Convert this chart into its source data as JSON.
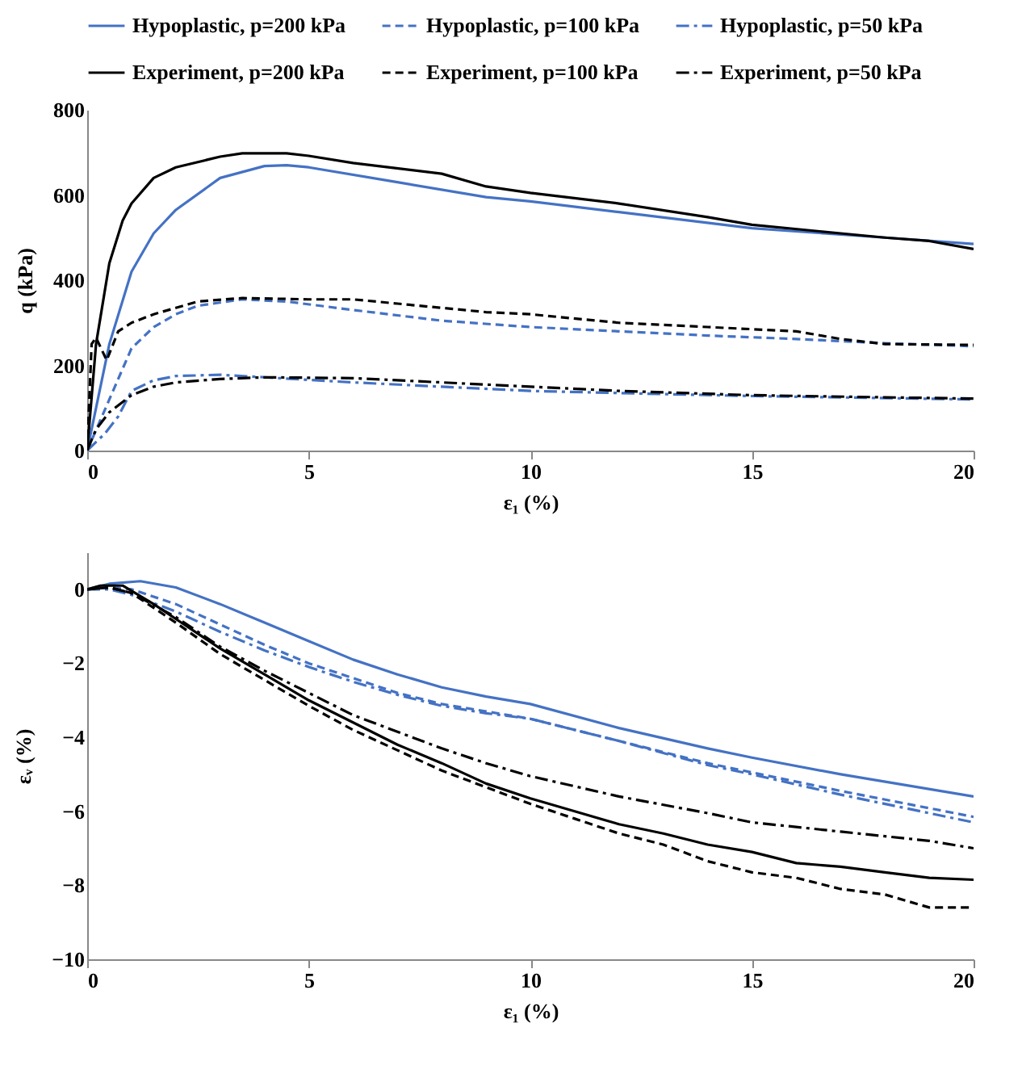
{
  "chart_data": [
    {
      "type": "line",
      "xlabel": "ε₁ (%)",
      "ylabel": "q (kPa)",
      "xlim": [
        0,
        20
      ],
      "xticks": [
        0,
        5,
        10,
        15,
        20
      ],
      "ylim": [
        0,
        800
      ],
      "yticks": [
        0,
        200,
        400,
        600,
        800
      ],
      "grid": false,
      "legend": "top",
      "series": [
        {
          "name": "Hypoplastic, p=200 kPa",
          "color": "#4472c4",
          "line_style": "solid",
          "x": [
            0,
            0.5,
            1,
            1.5,
            2,
            3,
            4,
            4.5,
            5,
            7,
            9,
            10,
            12,
            15,
            18,
            20
          ],
          "values": [
            0,
            250,
            420,
            510,
            565,
            640,
            668,
            670,
            665,
            630,
            595,
            585,
            560,
            522,
            500,
            485
          ]
        },
        {
          "name": "Hypoplastic, p=100 kPa",
          "color": "#4472c4",
          "line_style": "dashed",
          "x": [
            0,
            0.5,
            1,
            1.5,
            2,
            2.5,
            3.5,
            4.5,
            6,
            8,
            10,
            12,
            14,
            16,
            18,
            20
          ],
          "values": [
            0,
            120,
            240,
            290,
            320,
            340,
            355,
            350,
            330,
            305,
            290,
            280,
            270,
            262,
            252,
            245
          ]
        },
        {
          "name": "Hypoplastic, p=50 kPa",
          "color": "#4472c4",
          "line_style": "dashdot",
          "x": [
            0,
            0.4,
            0.7,
            1,
            1.5,
            2,
            3,
            4,
            6,
            8,
            10,
            12,
            15,
            20
          ],
          "values": [
            0,
            40,
            80,
            140,
            165,
            175,
            178,
            172,
            160,
            150,
            140,
            135,
            128,
            120
          ]
        },
        {
          "name": "Experiment, p=200 kPa",
          "color": "#000000",
          "line_style": "solid",
          "x": [
            0,
            0.2,
            0.5,
            0.8,
            1,
            1.5,
            2,
            3,
            3.5,
            4.5,
            5,
            6,
            8,
            9,
            10,
            12,
            14,
            15,
            17,
            18,
            19,
            20
          ],
          "values": [
            0,
            250,
            440,
            540,
            580,
            640,
            665,
            690,
            698,
            698,
            692,
            675,
            650,
            620,
            605,
            580,
            548,
            530,
            510,
            500,
            492,
            473
          ]
        },
        {
          "name": "Experiment, p=100 kPa",
          "color": "#000000",
          "line_style": "dashed",
          "x": [
            0,
            0.1,
            0.2,
            0.44,
            0.7,
            1,
            1.5,
            2,
            2.5,
            3.5,
            5,
            6,
            7,
            8,
            9,
            10,
            12,
            14,
            16,
            17,
            18,
            20
          ],
          "values": [
            0,
            250,
            265,
            212,
            280,
            300,
            320,
            335,
            350,
            358,
            355,
            355,
            345,
            335,
            325,
            320,
            300,
            290,
            280,
            262,
            250,
            248
          ]
        },
        {
          "name": "Experiment, p=50 kPa",
          "color": "#000000",
          "line_style": "dashdot",
          "x": [
            0,
            0.2,
            0.5,
            1,
            1.5,
            2,
            3,
            4,
            6,
            8,
            10,
            12,
            15,
            18,
            20
          ],
          "values": [
            0,
            50,
            90,
            130,
            150,
            160,
            168,
            172,
            170,
            160,
            150,
            140,
            130,
            125,
            122
          ]
        }
      ]
    },
    {
      "type": "line",
      "xlabel": "ε₁ (%)",
      "ylabel": "εᵥ (%)",
      "xlim": [
        0,
        20
      ],
      "xticks": [
        0,
        5,
        10,
        15,
        20
      ],
      "ylim": [
        -10,
        1
      ],
      "yticks": [
        -10,
        -8,
        -6,
        -4,
        -2,
        0
      ],
      "grid": false,
      "series": [
        {
          "color": "#4472c4",
          "line_style": "solid",
          "x": [
            0,
            0.5,
            1.2,
            2,
            3,
            4,
            5,
            6,
            7,
            8,
            9,
            10,
            12,
            14,
            15,
            17,
            20
          ],
          "values": [
            0,
            0.15,
            0.22,
            0.05,
            -0.4,
            -0.9,
            -1.4,
            -1.9,
            -2.3,
            -2.65,
            -2.9,
            -3.1,
            -3.75,
            -4.3,
            -4.55,
            -5.0,
            -5.6
          ]
        },
        {
          "color": "#4472c4",
          "line_style": "dashed",
          "x": [
            0,
            0.5,
            1,
            2,
            3,
            4,
            5,
            6,
            7,
            8,
            9,
            10,
            12,
            14,
            15,
            17,
            20
          ],
          "values": [
            0,
            0.05,
            0,
            -0.4,
            -0.95,
            -1.5,
            -2.0,
            -2.4,
            -2.8,
            -3.1,
            -3.3,
            -3.5,
            -4.1,
            -4.7,
            -4.95,
            -5.45,
            -6.15
          ]
        },
        {
          "color": "#4472c4",
          "line_style": "dashdot",
          "x": [
            0,
            0.5,
            1,
            2,
            3,
            4,
            5,
            6,
            7,
            8,
            9,
            10,
            12,
            14,
            15,
            17,
            20
          ],
          "values": [
            0,
            0,
            -0.15,
            -0.6,
            -1.15,
            -1.65,
            -2.1,
            -2.5,
            -2.85,
            -3.15,
            -3.35,
            -3.5,
            -4.1,
            -4.75,
            -5.0,
            -5.55,
            -6.3
          ]
        },
        {
          "color": "#000000",
          "line_style": "solid",
          "x": [
            0,
            0.3,
            0.8,
            1.5,
            2,
            3,
            4,
            5,
            6,
            7,
            8,
            9,
            10,
            11,
            12,
            13,
            14,
            15,
            16,
            17,
            18,
            19,
            20
          ],
          "values": [
            0,
            0.1,
            0.1,
            -0.4,
            -0.8,
            -1.6,
            -2.3,
            -3.0,
            -3.6,
            -4.2,
            -4.7,
            -5.25,
            -5.65,
            -6.0,
            -6.35,
            -6.6,
            -6.9,
            -7.1,
            -7.4,
            -7.5,
            -7.65,
            -7.8,
            -7.85
          ]
        },
        {
          "color": "#000000",
          "line_style": "dashed",
          "x": [
            0,
            0.5,
            1,
            2,
            3,
            4,
            5,
            6,
            7,
            8,
            9,
            10,
            11,
            12,
            13,
            14,
            15,
            16,
            17,
            18,
            19,
            20
          ],
          "values": [
            0,
            0.05,
            -0.1,
            -0.9,
            -1.75,
            -2.45,
            -3.15,
            -3.8,
            -4.35,
            -4.9,
            -5.35,
            -5.8,
            -6.2,
            -6.6,
            -6.9,
            -7.35,
            -7.65,
            -7.8,
            -8.1,
            -8.25,
            -8.6,
            -8.6
          ]
        },
        {
          "color": "#000000",
          "line_style": "dashdot",
          "x": [
            0,
            0.5,
            1,
            2,
            3,
            4,
            5,
            6,
            7,
            8,
            9,
            10,
            12,
            14,
            15,
            17,
            19,
            20
          ],
          "values": [
            0,
            0.05,
            -0.1,
            -0.75,
            -1.55,
            -2.2,
            -2.8,
            -3.4,
            -3.85,
            -4.3,
            -4.7,
            -5.05,
            -5.6,
            -6.05,
            -6.3,
            -6.55,
            -6.8,
            -7.0
          ]
        }
      ]
    }
  ]
}
